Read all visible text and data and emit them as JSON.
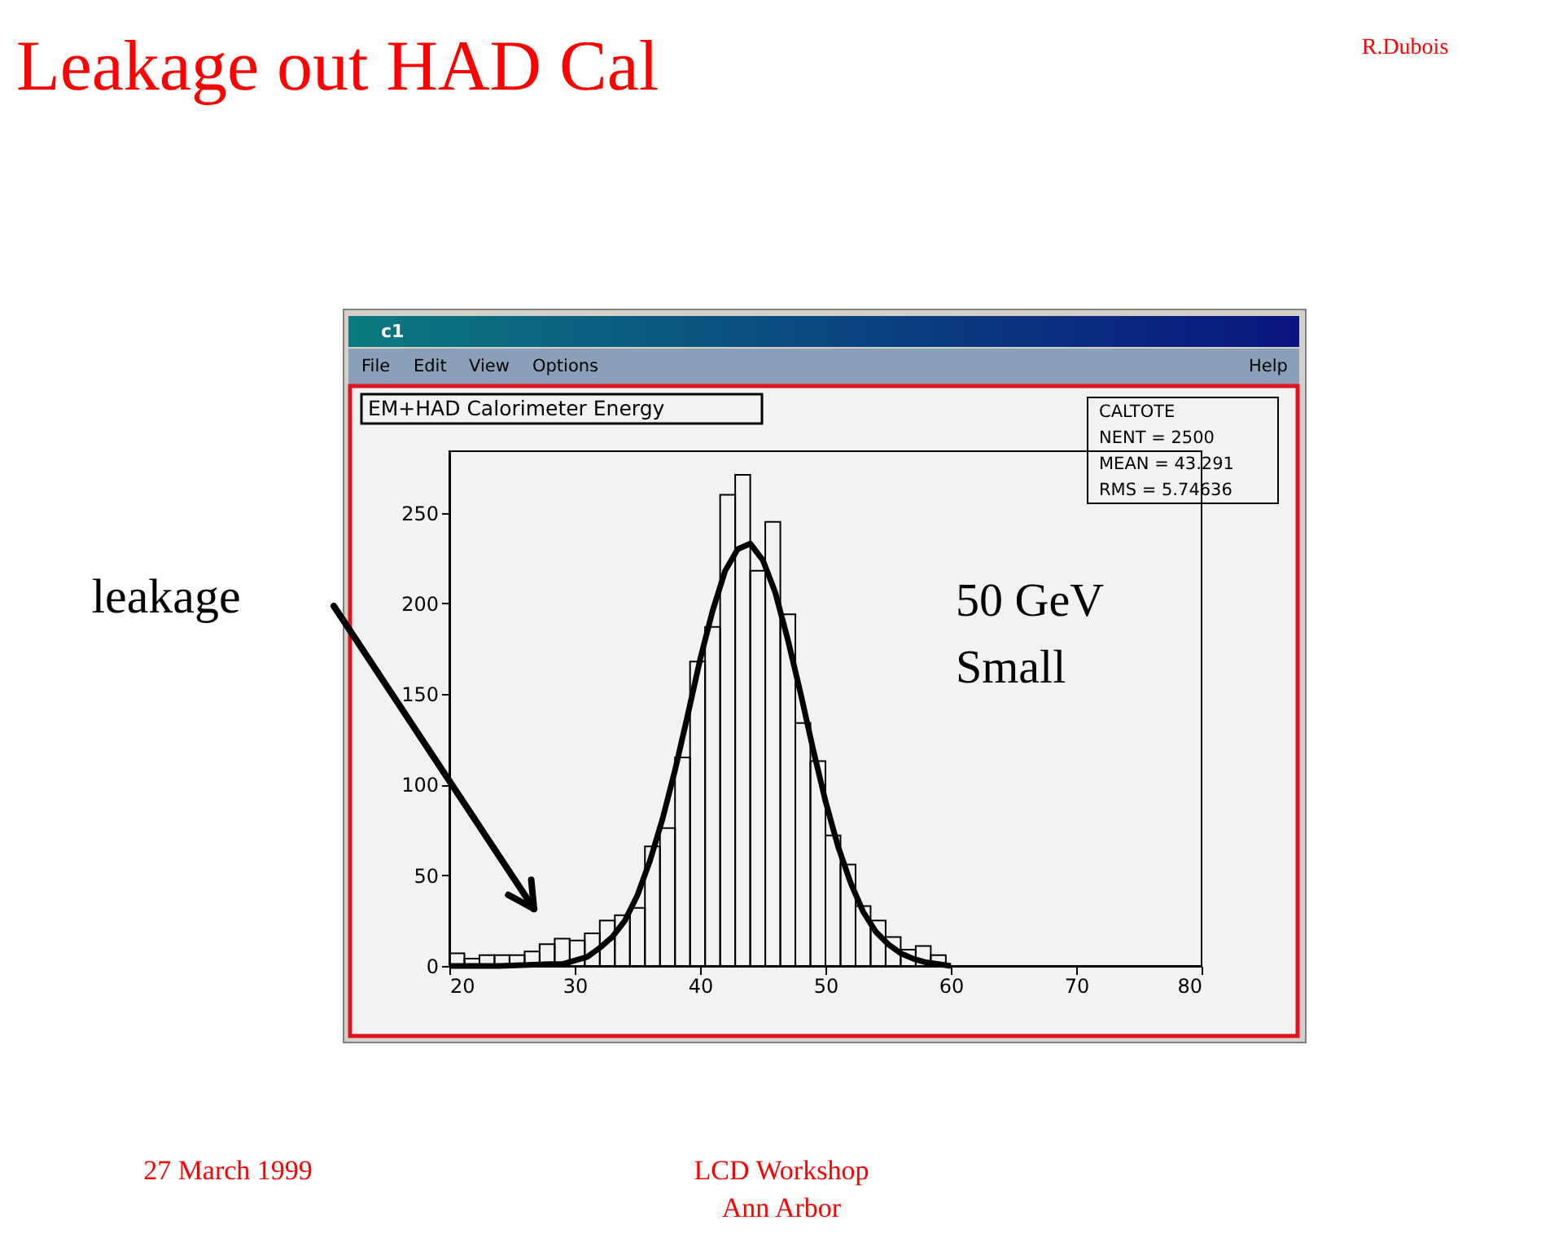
{
  "chart_data": {
    "type": "histogram",
    "title": "Leakage out HAD Cal",
    "subtitle": "EM+HAD Calorimeter Energy",
    "bins": [
      20,
      21.2,
      22.4,
      23.6,
      24.8,
      26,
      27.2,
      28.4,
      29.6,
      30.8,
      32,
      33.2,
      34.4,
      35.6,
      36.8,
      38,
      39.2,
      40.4,
      41.6,
      42.8,
      44,
      45.2,
      46.4,
      47.6,
      48.8,
      50,
      51.2,
      52.4,
      53.6,
      54.8,
      56,
      57.2,
      58.4,
      59.6,
      60.8,
      62,
      63.2,
      64.4,
      65.6,
      66.8,
      68,
      69.2,
      70.4,
      71.6,
      72.8,
      74,
      75.2,
      76.4,
      77.6,
      78.8,
      80
    ],
    "values": [
      7,
      4,
      6,
      6,
      6,
      8,
      12,
      15,
      14,
      18,
      25,
      28,
      32,
      66,
      76,
      115,
      168,
      187,
      260,
      271,
      218,
      245,
      194,
      134,
      113,
      72,
      56,
      33,
      25,
      16,
      9,
      11,
      6,
      0,
      0,
      0,
      0,
      0,
      0,
      0,
      0,
      0,
      0,
      0,
      0,
      0,
      0,
      0,
      0,
      0
    ],
    "color": "#000000",
    "series": [
      {
        "type": "line",
        "color": "#000000",
        "x": [
          20,
          24,
          28,
          29,
          30,
          31,
          32,
          33,
          34,
          35,
          36,
          37,
          38,
          39,
          40,
          41,
          42,
          43,
          44,
          45,
          46,
          47,
          48,
          49,
          50,
          51,
          52,
          53,
          54,
          55,
          56,
          57,
          58,
          59,
          60
        ],
        "values": [
          0,
          0,
          1,
          1,
          3,
          5,
          10,
          16,
          25,
          39,
          58,
          81,
          108,
          138,
          169,
          196,
          218,
          230,
          233,
          224,
          206,
          180,
          151,
          120,
          91,
          66,
          46,
          30,
          19,
          12,
          7,
          4,
          2,
          1,
          0
        ]
      }
    ],
    "xlim": [
      20,
      80
    ],
    "ylim": [
      0,
      284
    ],
    "xticks": [
      20,
      30,
      40,
      50,
      60,
      70,
      80
    ],
    "yticks": [
      0,
      50,
      100,
      150,
      200,
      250
    ],
    "annotations": [
      "R.Dubois",
      "leakage",
      "50 GeV",
      "Small",
      "CALTOTE",
      "NENT = 2500",
      "MEAN = 43.291",
      "RMS = 5.74636",
      "27 March 1999",
      "LCD Workshop",
      "Ann Arbor",
      "c1",
      "File",
      "Edit",
      "View",
      "Options",
      "Help"
    ]
  }
}
